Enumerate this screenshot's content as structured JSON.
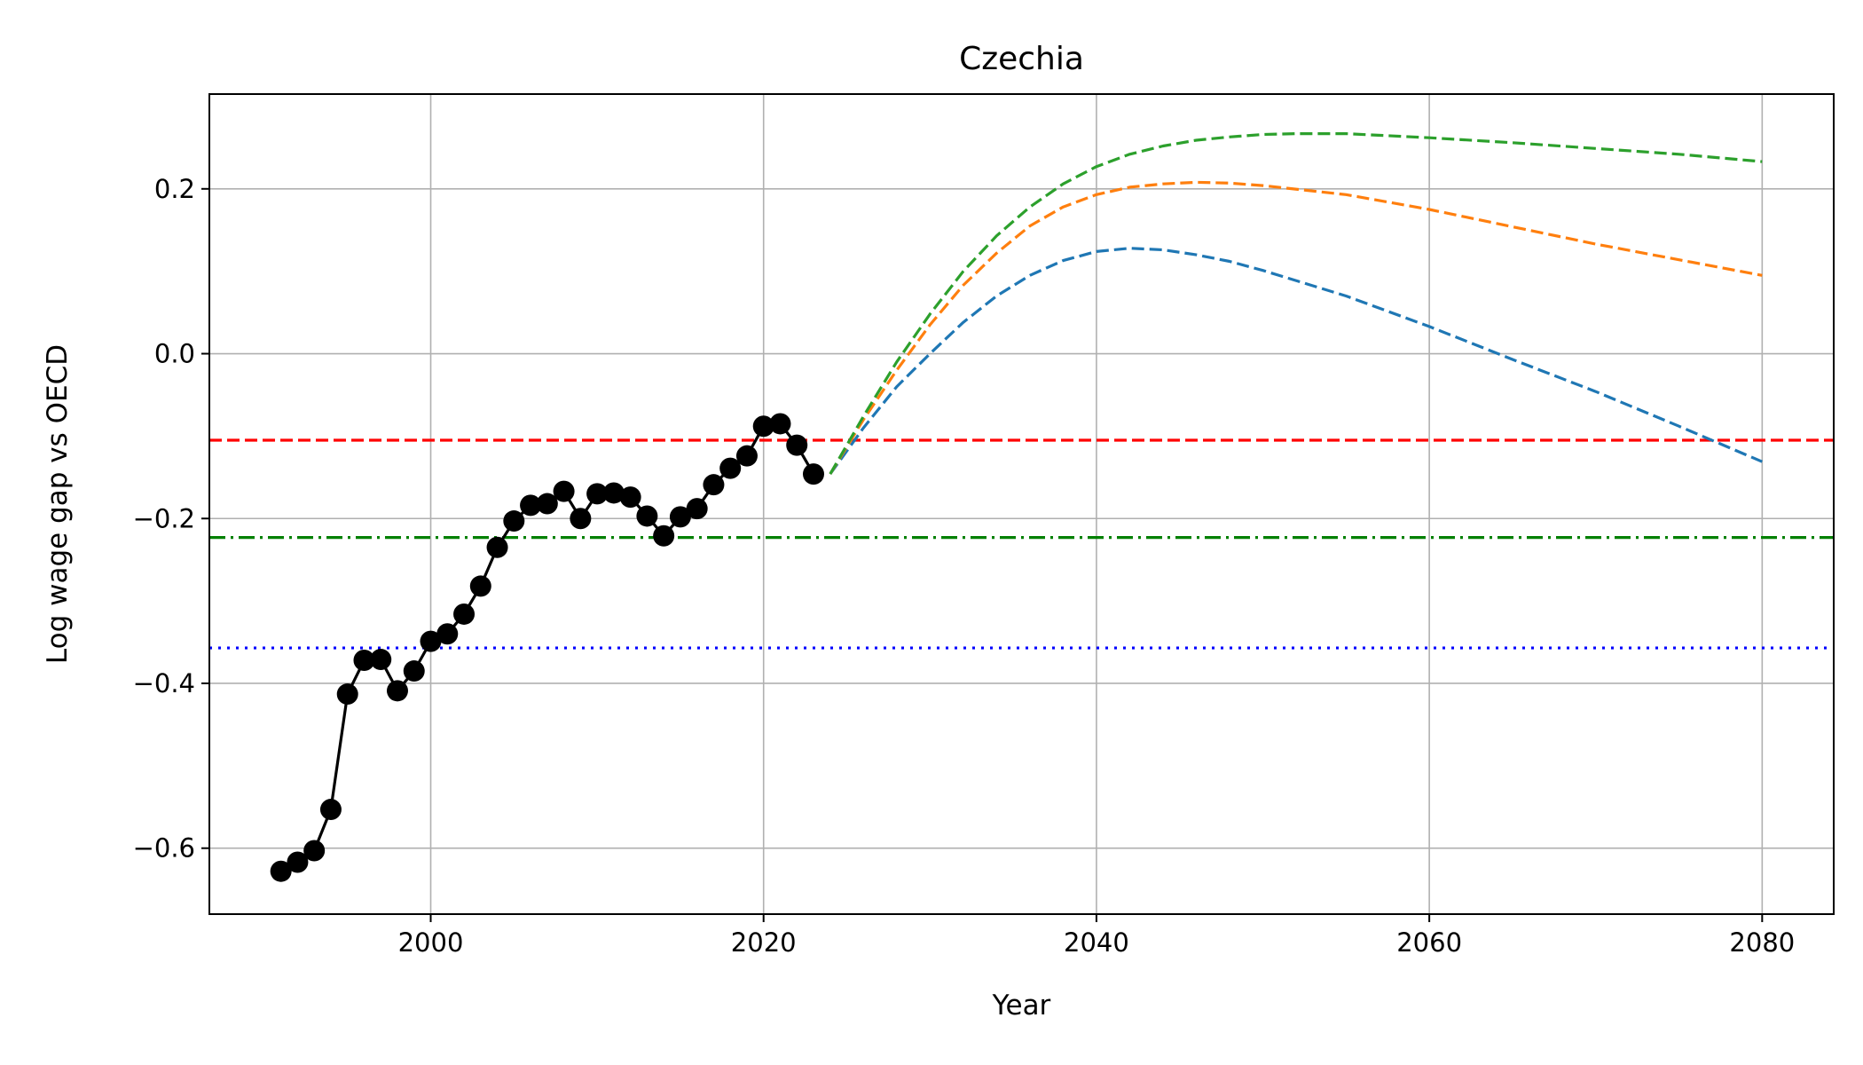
{
  "chart_data": {
    "type": "line",
    "title": "Czechia",
    "xlabel": "Year",
    "ylabel": "Log wage gap vs OECD",
    "xlim": [
      1986.7,
      2084.3
    ],
    "ylim": [
      -0.68,
      0.315
    ],
    "xticks": [
      2000,
      2020,
      2040,
      2060,
      2080
    ],
    "yticks": [
      -0.6,
      -0.4,
      -0.2,
      0.0,
      0.2
    ],
    "xtick_labels": [
      "2000",
      "2020",
      "2040",
      "2060",
      "2080"
    ],
    "ytick_labels": [
      "−0.6",
      "−0.4",
      "−0.2",
      "0.0",
      "0.2"
    ],
    "grid": true,
    "series": [
      {
        "style": "solid-markers",
        "color": "#000000",
        "x": [
          1991,
          1992,
          1993,
          1994,
          1995,
          1996,
          1997,
          1998,
          1999,
          2000,
          2001,
          2002,
          2003,
          2004,
          2005,
          2006,
          2007,
          2008,
          2009,
          2010,
          2011,
          2012,
          2013,
          2014,
          2015,
          2016,
          2017,
          2018,
          2019,
          2020,
          2021,
          2022,
          2023
        ],
        "y": [
          -0.628,
          -0.617,
          -0.603,
          -0.553,
          -0.413,
          -0.372,
          -0.371,
          -0.409,
          -0.385,
          -0.349,
          -0.34,
          -0.316,
          -0.282,
          -0.235,
          -0.203,
          -0.184,
          -0.182,
          -0.167,
          -0.2,
          -0.17,
          -0.169,
          -0.174,
          -0.197,
          -0.221,
          -0.198,
          -0.188,
          -0.159,
          -0.139,
          -0.124,
          -0.088,
          -0.085,
          -0.111,
          -0.146
        ]
      },
      {
        "style": "dashed",
        "color": "#1f77b4",
        "x": [
          2024,
          2026,
          2028,
          2030,
          2032,
          2034,
          2036,
          2038,
          2040,
          2042,
          2044,
          2046,
          2048,
          2050,
          2055,
          2060,
          2065,
          2070,
          2075,
          2080
        ],
        "y": [
          -0.146,
          -0.09,
          -0.04,
          0.0,
          0.038,
          0.07,
          0.095,
          0.113,
          0.124,
          0.128,
          0.126,
          0.12,
          0.112,
          0.101,
          0.07,
          0.033,
          -0.007,
          -0.046,
          -0.088,
          -0.131
        ]
      },
      {
        "style": "dashed",
        "color": "#ff7f0e",
        "x": [
          2024,
          2026,
          2028,
          2030,
          2032,
          2034,
          2036,
          2038,
          2040,
          2042,
          2044,
          2046,
          2048,
          2050,
          2055,
          2060,
          2065,
          2070,
          2075,
          2080
        ],
        "y": [
          -0.146,
          -0.08,
          -0.02,
          0.035,
          0.083,
          0.122,
          0.155,
          0.178,
          0.193,
          0.202,
          0.206,
          0.208,
          0.207,
          0.204,
          0.193,
          0.175,
          0.154,
          0.133,
          0.114,
          0.095
        ]
      },
      {
        "style": "dashed",
        "color": "#2ca02c",
        "x": [
          2024,
          2026,
          2028,
          2030,
          2032,
          2034,
          2036,
          2038,
          2040,
          2042,
          2044,
          2046,
          2048,
          2050,
          2052,
          2055,
          2060,
          2065,
          2070,
          2075,
          2080
        ],
        "y": [
          -0.146,
          -0.076,
          -0.01,
          0.048,
          0.1,
          0.143,
          0.178,
          0.206,
          0.227,
          0.242,
          0.252,
          0.259,
          0.263,
          0.266,
          0.267,
          0.267,
          0.262,
          0.256,
          0.249,
          0.242,
          0.233
        ]
      }
    ],
    "reference_lines": [
      {
        "y": -0.105,
        "color": "#ff0000",
        "style": "dashed"
      },
      {
        "y": -0.223,
        "color": "#008000",
        "style": "dashdot"
      },
      {
        "y": -0.357,
        "color": "#0000ff",
        "style": "dotted"
      }
    ]
  }
}
